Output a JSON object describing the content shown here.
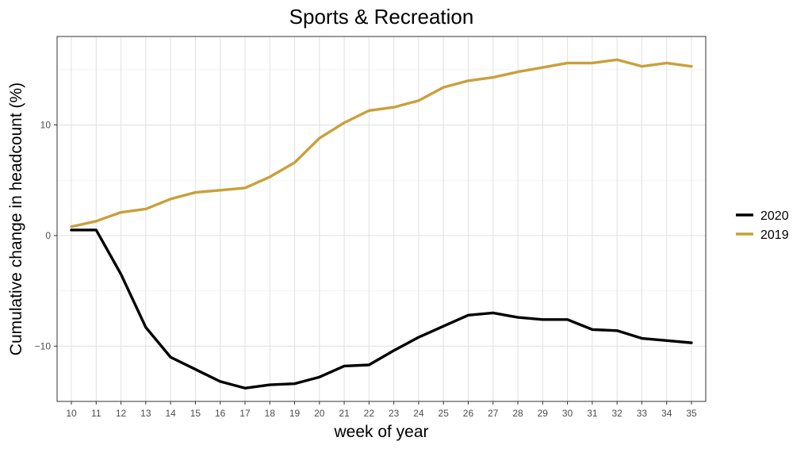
{
  "chart_data": {
    "type": "line",
    "title": "Sports & Recreation",
    "xlabel": "week of year",
    "ylabel": "Cumulative change in headcount (%)",
    "x": [
      10,
      11,
      12,
      13,
      14,
      15,
      16,
      17,
      18,
      19,
      20,
      21,
      22,
      23,
      24,
      25,
      26,
      27,
      28,
      29,
      30,
      31,
      32,
      33,
      34,
      35
    ],
    "xlim": [
      10,
      35
    ],
    "ylim": [
      -15,
      18
    ],
    "yticks": [
      -10,
      0,
      10
    ],
    "ytick_labels": [
      "−10",
      "0",
      "10"
    ],
    "grid": true,
    "legend_position": "right",
    "series": [
      {
        "name": "2020",
        "color": "#000000",
        "values": [
          0.5,
          0.5,
          -3.5,
          -8.3,
          -11.0,
          -12.1,
          -13.2,
          -13.8,
          -13.5,
          -13.4,
          -12.8,
          -11.8,
          -11.7,
          -10.4,
          -9.2,
          -8.2,
          -7.2,
          -7.0,
          -7.4,
          -7.6,
          -7.6,
          -8.5,
          -8.6,
          -9.3,
          -9.5,
          -9.7
        ]
      },
      {
        "name": "2019",
        "color": "#C9A03A",
        "values": [
          0.8,
          1.3,
          2.1,
          2.4,
          3.3,
          3.9,
          4.1,
          4.3,
          5.3,
          6.6,
          8.8,
          10.2,
          11.3,
          11.6,
          12.2,
          13.4,
          14.0,
          14.3,
          14.8,
          15.2,
          15.6,
          15.6,
          15.9,
          15.3,
          15.6,
          15.3
        ]
      }
    ]
  }
}
